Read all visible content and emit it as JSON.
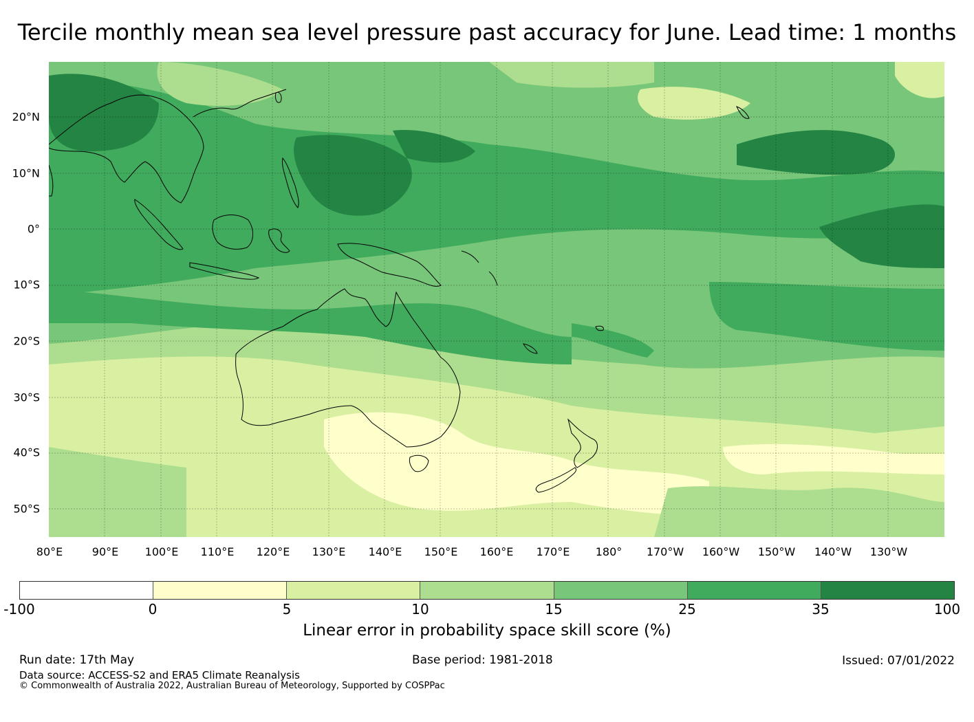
{
  "title": "Tercile monthly mean sea level pressure past accuracy for June. Lead time: 1 months",
  "map": {
    "lat_labels": [
      "20°N",
      "10°N",
      "0°",
      "10°S",
      "20°S",
      "30°S",
      "40°S",
      "50°S"
    ],
    "lon_labels": [
      "80°E",
      "90°E",
      "100°E",
      "110°E",
      "120°E",
      "130°E",
      "140°E",
      "150°E",
      "160°E",
      "170°E",
      "180°",
      "170°W",
      "160°W",
      "150°W",
      "140°W",
      "130°W"
    ]
  },
  "colorbar": {
    "ticks": [
      "-100",
      "0",
      "5",
      "10",
      "15",
      "25",
      "35",
      "100"
    ],
    "colors": [
      "#ffffff",
      "#ffffcc",
      "#d9f0a3",
      "#addd8e",
      "#78c679",
      "#41ab5d",
      "#238443"
    ],
    "label": "Linear error in probability space skill score (%)"
  },
  "footer": {
    "run_date": "Run date: 17th May",
    "base_period": "Base period: 1981-2018",
    "issued": "Issued: 07/01/2022",
    "data_source": "Data source: ACCESS-S2 and ERA5 Climate Reanalysis",
    "copyright": "© Commonwealth of Australia 2022, Australian Bureau of Meteorology, Supported by COSPPac"
  }
}
